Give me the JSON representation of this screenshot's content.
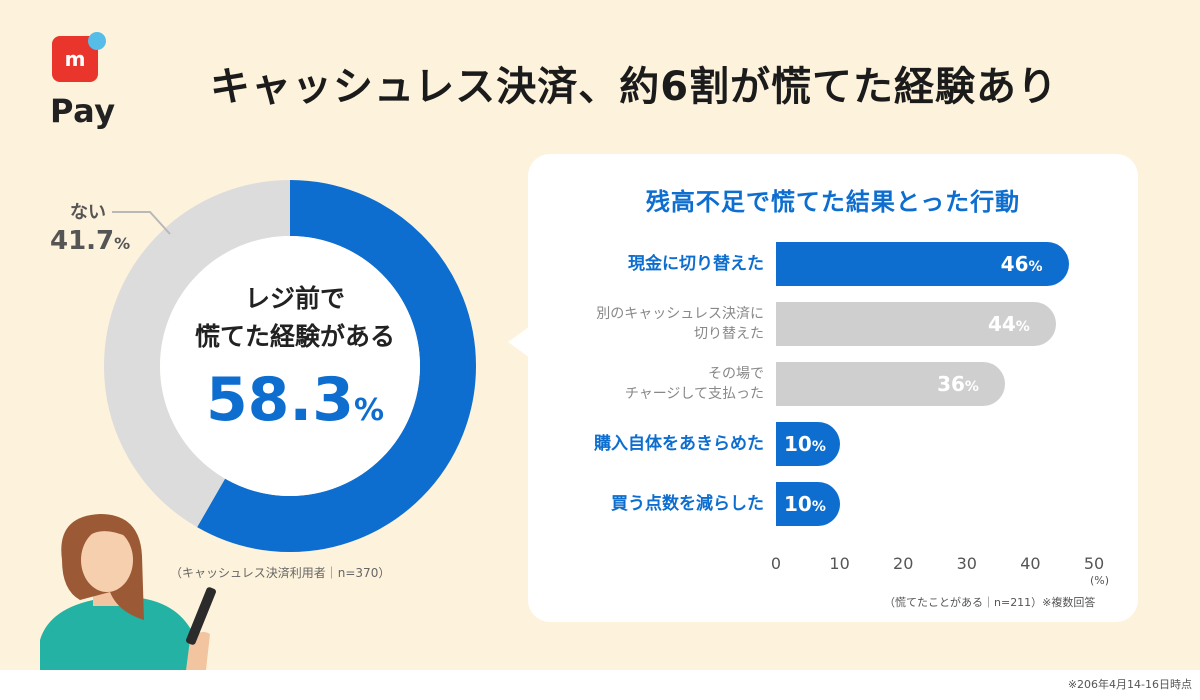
{
  "brand": {
    "logo_mark": "m",
    "logo_text": "Pay"
  },
  "title": "キャッシュレス決済、約6割が慌てた経験あり",
  "donut": {
    "center_line1": "レジ前で",
    "center_line2": "慌てた経験がある",
    "yes_value": "58.3",
    "unit": "%",
    "no_label": "ない",
    "no_value": "41.7",
    "note": "（キャッシュレス決済利用者｜n=370）"
  },
  "panel": {
    "title": "残高不足で慌てた結果とった行動",
    "bars": [
      {
        "label": "現金に切り替えた",
        "value": "46",
        "highlight": true
      },
      {
        "label_line1": "別のキャッシュレス決済に",
        "label_line2": "切り替えた",
        "value": "44",
        "highlight": false
      },
      {
        "label_line1": "その場で",
        "label_line2": "チャージして支払った",
        "value": "36",
        "highlight": false
      },
      {
        "label": "購入自体をあきらめた",
        "value": "10",
        "highlight": true
      },
      {
        "label": "買う点数を減らした",
        "value": "10",
        "highlight": true
      }
    ],
    "ticks": [
      "0",
      "10",
      "20",
      "30",
      "40",
      "50"
    ],
    "tick_unit": "(%)",
    "note": "（慌てたことがある｜n=211）※複数回答"
  },
  "footnote": "※206年4月14-16日時点",
  "chart_data": [
    {
      "type": "pie",
      "categories": [
        "レジ前で慌てた経験がある",
        "ない"
      ],
      "values": [
        58.3,
        41.7
      ],
      "title": "",
      "colors": [
        "#0d6ecf",
        "#dcdcdc"
      ]
    },
    {
      "type": "bar",
      "orientation": "horizontal",
      "title": "残高不足で慌てた結果とった行動",
      "categories": [
        "現金に切り替えた",
        "別のキャッシュレス決済に切り替えた",
        "その場でチャージして支払った",
        "購入自体をあきらめた",
        "買う点数を減らした"
      ],
      "values": [
        46,
        44,
        36,
        10,
        10
      ],
      "xlim": [
        0,
        50
      ],
      "xlabel": "(%)",
      "colors": [
        "#0d6ecf",
        "#cfcfcf",
        "#cfcfcf",
        "#0d6ecf",
        "#0d6ecf"
      ]
    }
  ],
  "colors": {
    "accent": "#0d6ecf",
    "background": "#fdf3dc",
    "muted": "#cfcfcf",
    "brand_red": "#ea352d"
  }
}
